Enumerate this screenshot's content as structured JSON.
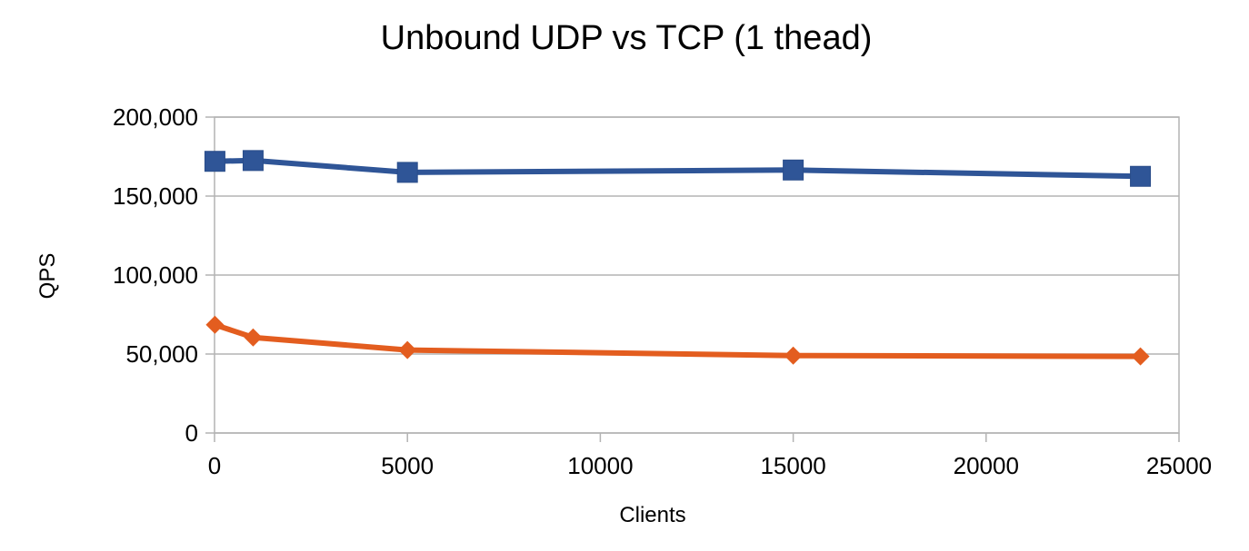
{
  "chart_data": {
    "type": "line",
    "title": "Unbound UDP vs TCP (1 thead)",
    "xlabel": "Clients",
    "ylabel": "QPS",
    "xlim": [
      0,
      25000
    ],
    "ylim": [
      0,
      200000
    ],
    "x_ticks": [
      0,
      5000,
      10000,
      15000,
      20000,
      25000
    ],
    "x_tick_labels": [
      "0",
      "5000",
      "10000",
      "15000",
      "20000",
      "25000"
    ],
    "y_ticks": [
      0,
      50000,
      100000,
      150000,
      200000
    ],
    "y_tick_labels": [
      "0",
      "50,000",
      "100,000",
      "150,000",
      "200,000"
    ],
    "grid": "horizontal",
    "legend": "none",
    "series": [
      {
        "marker": "square",
        "color": "#2f5597",
        "x": [
          10,
          1000,
          5000,
          15000,
          24000
        ],
        "y": [
          172000,
          172500,
          165000,
          166500,
          162500
        ]
      },
      {
        "marker": "diamond",
        "color": "#e35d1f",
        "x": [
          10,
          1000,
          5000,
          15000,
          24000
        ],
        "y": [
          68500,
          60500,
          52500,
          49000,
          48500
        ]
      }
    ]
  }
}
